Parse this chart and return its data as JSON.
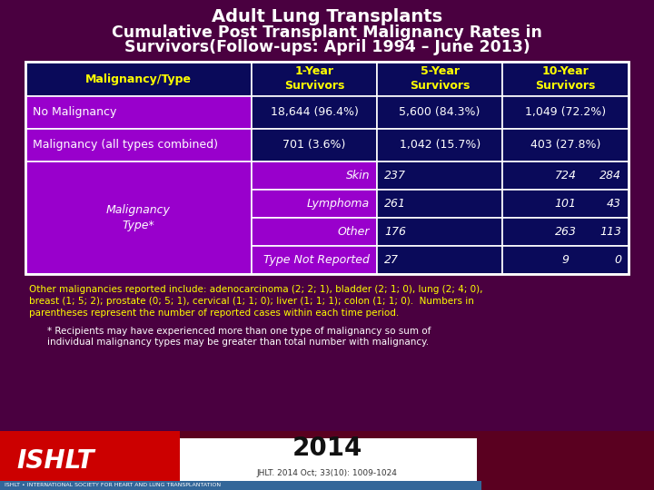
{
  "title_line1": "Adult Lung Transplants",
  "title_line2": "Cumulative Post Transplant Malignancy Rates in",
  "title_line3": "Survivors(Follow-ups: April 1994 – June 2013)",
  "bg_color": "#4a0040",
  "table_bg_dark": "#0a0a5a",
  "table_bg_purple": "#9900cc",
  "table_border": "#ffffff",
  "header_row": [
    "Malignancy/Type",
    "1-Year\nSurvivors",
    "5-Year\nSurvivors",
    "10-Year\nSurvivors"
  ],
  "rows": [
    {
      "label": "No Malignancy",
      "col1": "18,644 (96.4%)",
      "col2": "5,600 (84.3%)",
      "col3": "1,049 (72.2%)"
    },
    {
      "label": "Malignancy (all types combined)",
      "col1": "701 (3.6%)",
      "col2": "1,042 (15.7%)",
      "col3": "403 (27.8%)"
    }
  ],
  "subtypes": [
    {
      "label": "Skin",
      "col1": "237",
      "col2": "724",
      "col3": "284"
    },
    {
      "label": "Lymphoma",
      "col1": "261",
      "col2": "101",
      "col3": "43"
    },
    {
      "label": "Other",
      "col1": "176",
      "col2": "263",
      "col3": "113"
    },
    {
      "label": "Type Not Reported",
      "col1": "27",
      "col2": "9",
      "col3": "0"
    }
  ],
  "footnote1": "Other malignancies reported include: adenocarcinoma (2; 2; 1), bladder (2; 1; 0), lung (2; 4; 0),",
  "footnote2": "breast (1; 5; 2); prostate (0; 5; 1), cervical (1; 1; 0); liver (1; 1; 1); colon (1; 1; 0).  Numbers in",
  "footnote3": "parentheses represent the number of reported cases within each time period.",
  "footnote4": "* Recipients may have experienced more than one type of malignancy so sum of",
  "footnote5": "individual malignancy types may be greater than total number with malignancy.",
  "year_text": "2014",
  "citation": "JHLT. 2014 Oct; 33(10): 1009-1024",
  "malignancy_type_label": "Malignancy\nType*",
  "ishlt_text": "ISHLT • INTERNATIONAL SOCIETY FOR HEART AND LUNG TRANSPLANTATION"
}
